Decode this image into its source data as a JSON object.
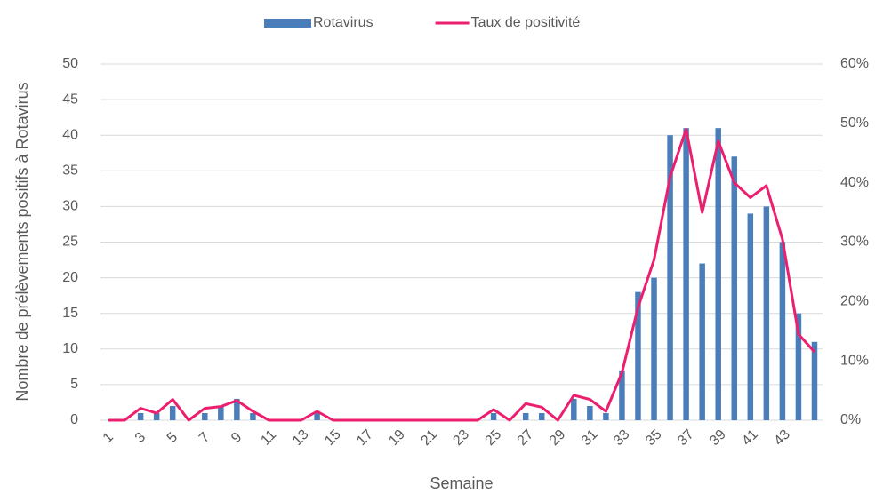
{
  "chart_data": {
    "type": "bar_line",
    "xlabel": "Semaine",
    "ylabel": "Nombre de prélèvements positifs à Rotavirus",
    "categories": [
      "1",
      null,
      "3",
      null,
      "5",
      null,
      "7",
      null,
      "9",
      null,
      "11",
      null,
      "13",
      null,
      "15",
      null,
      "17",
      null,
      "19",
      null,
      "21",
      null,
      "23",
      null,
      "25",
      null,
      "27",
      null,
      "29",
      null,
      "31",
      null,
      "33",
      null,
      "35",
      null,
      "37",
      null,
      "39",
      null,
      "41",
      null,
      "43",
      null,
      null
    ],
    "series": [
      {
        "name": "Rotavirus",
        "type": "bar",
        "color": "#4a7ebb",
        "values": [
          0,
          0,
          1,
          1,
          2,
          0,
          1,
          2,
          3,
          1,
          0,
          0,
          0,
          1,
          0,
          0,
          0,
          0,
          0,
          0,
          0,
          0,
          0,
          0,
          1,
          0,
          1,
          1,
          0,
          3,
          2,
          1,
          7,
          18,
          20,
          40,
          41,
          22,
          41,
          37,
          29,
          30,
          25,
          15,
          11
        ]
      },
      {
        "name": "Taux de positivité",
        "type": "line",
        "axis": "y2",
        "color": "#ec1e6e",
        "values": [
          0,
          0,
          2,
          1.2,
          3.5,
          0,
          2,
          2.3,
          3.3,
          1.5,
          0,
          0,
          0,
          1.5,
          0,
          0,
          0,
          0,
          0,
          0,
          0,
          0,
          0,
          0,
          1.8,
          0,
          2.8,
          2.2,
          0,
          4.2,
          3.5,
          1.5,
          8,
          19,
          27,
          41,
          49,
          35,
          47,
          40,
          37.5,
          39.5,
          30.5,
          14.5,
          11.5
        ]
      }
    ],
    "ylim": [
      0,
      50
    ],
    "yticks": [
      0,
      5,
      10,
      15,
      20,
      25,
      30,
      35,
      40,
      45,
      50
    ],
    "y2lim": [
      0,
      60
    ],
    "y2ticks": [
      {
        "value": 0,
        "label": "0%"
      },
      {
        "value": 10,
        "label": "10%"
      },
      {
        "value": 20,
        "label": "20%"
      },
      {
        "value": 30,
        "label": "30%"
      },
      {
        "value": 40,
        "label": "40%"
      },
      {
        "value": 50,
        "label": "50%"
      },
      {
        "value": 60,
        "label": "60%"
      }
    ],
    "grid": true,
    "legend": "top"
  }
}
